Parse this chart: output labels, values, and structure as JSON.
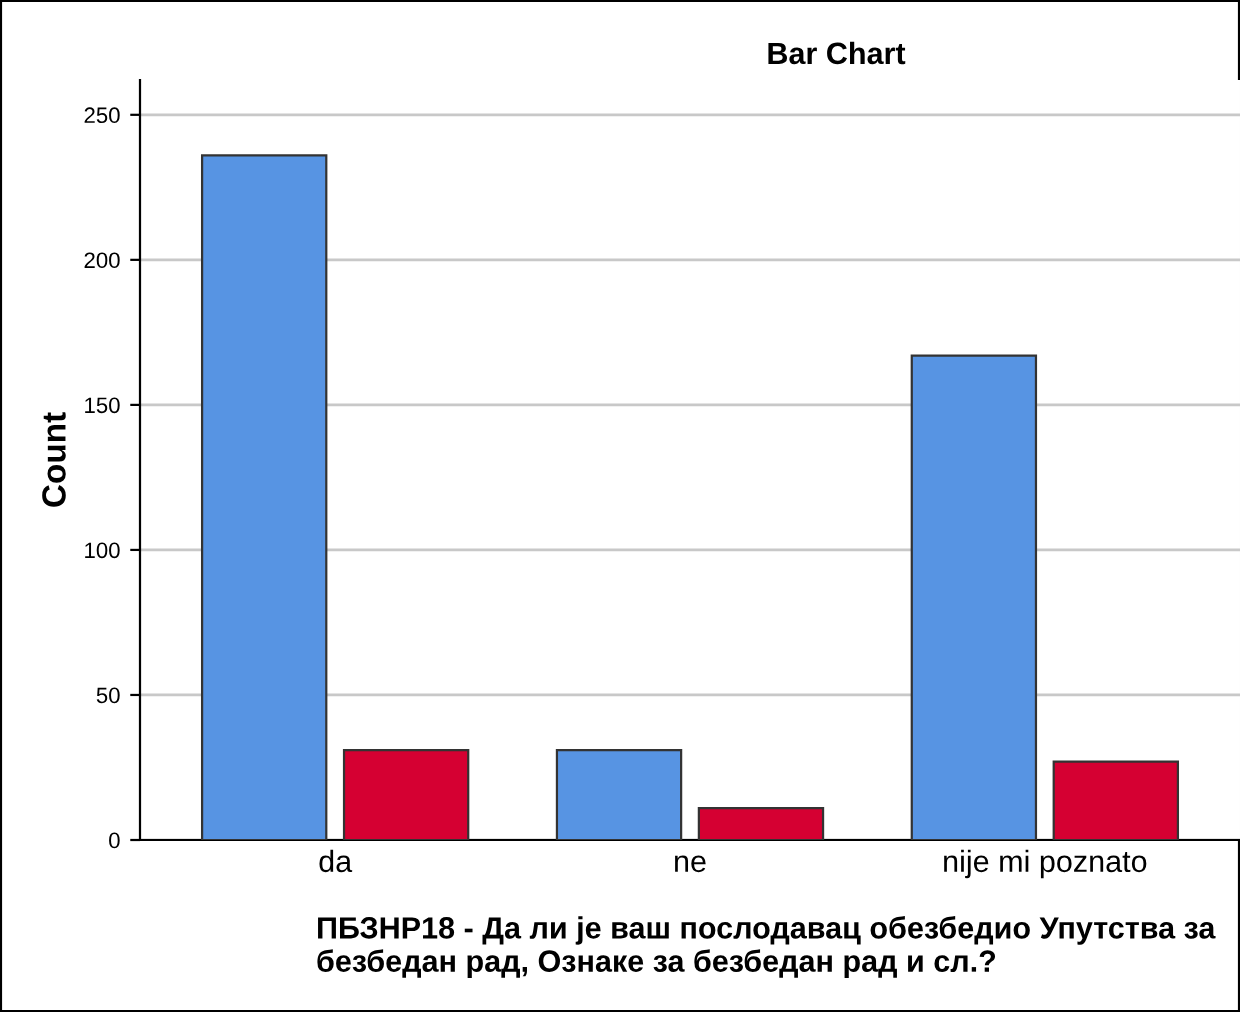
{
  "chart_data": {
    "type": "bar",
    "title": "Bar Chart",
    "xlabel": "ПБЗНР18 - Да ли је ваш послодавац обезбедио Упутства за безбедан рад, Ознаке за безбедан рад и сл.?",
    "ylabel": "Count",
    "categories": [
      "da",
      "ne",
      "nije mi poznato"
    ],
    "series": [
      {
        "color": "#5794e3",
        "values": [
          236,
          31,
          167
        ]
      },
      {
        "color": "#d50032",
        "values": [
          31,
          11,
          27
        ]
      }
    ],
    "ylim": [
      0,
      262
    ],
    "yticks": [
      0,
      50,
      100,
      150,
      200,
      250
    ],
    "grid": "y",
    "legend": false
  }
}
